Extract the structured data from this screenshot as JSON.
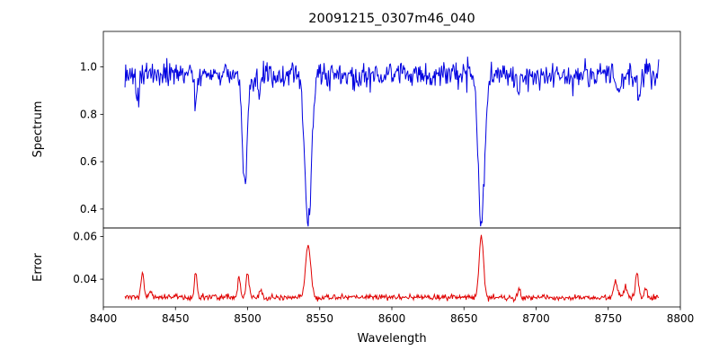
{
  "chart_data": {
    "type": "line",
    "title": "20091215_0307m46_040",
    "xlabel": "Wavelength",
    "grid": false,
    "legend": "none",
    "xlim": [
      8400,
      8800
    ],
    "x_ticks": {
      "values": [
        8400,
        8450,
        8500,
        8550,
        8600,
        8650,
        8700,
        8750,
        8800
      ],
      "labels": [
        "8400",
        "8450",
        "8500",
        "8550",
        "8600",
        "8650",
        "8700",
        "8750",
        "8800"
      ]
    },
    "x_data_range": [
      8415,
      8785
    ],
    "sample_step": 0.5,
    "noise_seed": 20091215,
    "panels": [
      {
        "series_name": "spectrum-line",
        "ylabel": "Spectrum",
        "ylim": [
          0.32,
          1.15
        ],
        "y_ticks": {
          "values": [
            0.4,
            0.6,
            0.8,
            1.0
          ],
          "labels": [
            "0.4",
            "0.6",
            "0.8",
            "1.0"
          ]
        },
        "line_color": "#0000e0",
        "baseline": 0.965,
        "noise_sigma": 0.028,
        "features": [
          {
            "center": 8424,
            "amplitude": -0.1,
            "width": 0.9
          },
          {
            "center": 8464,
            "amplitude": -0.12,
            "width": 0.8
          },
          {
            "center": 8498,
            "amplitude": -0.48,
            "width": 1.6
          },
          {
            "center": 8508,
            "amplitude": -0.07,
            "width": 0.8
          },
          {
            "center": 8542,
            "amplitude": -0.62,
            "width": 2.4
          },
          {
            "center": 8662,
            "amplitude": -0.63,
            "width": 2.2
          },
          {
            "center": 8688,
            "amplitude": -0.09,
            "width": 0.9
          },
          {
            "center": 8757,
            "amplitude": -0.08,
            "width": 1.1
          },
          {
            "center": 8771,
            "amplitude": -0.09,
            "width": 0.9
          }
        ]
      },
      {
        "series_name": "error-line",
        "ylabel": "Error",
        "ylim": [
          0.027,
          0.064
        ],
        "y_ticks": {
          "values": [
            0.04,
            0.06
          ],
          "labels": [
            "0.04",
            "0.06"
          ]
        },
        "line_color": "#e00000",
        "baseline": 0.0315,
        "noise_sigma": 0.0007,
        "features": [
          {
            "center": 8427,
            "amplitude": 0.0115,
            "width": 1.0
          },
          {
            "center": 8433,
            "amplitude": 0.003,
            "width": 0.8
          },
          {
            "center": 8464,
            "amplitude": 0.013,
            "width": 0.8
          },
          {
            "center": 8494,
            "amplitude": 0.009,
            "width": 0.9
          },
          {
            "center": 8500,
            "amplitude": 0.012,
            "width": 1.0
          },
          {
            "center": 8509,
            "amplitude": 0.004,
            "width": 0.8
          },
          {
            "center": 8542,
            "amplitude": 0.0245,
            "width": 1.8
          },
          {
            "center": 8662,
            "amplitude": 0.0285,
            "width": 1.5
          },
          {
            "center": 8688,
            "amplitude": 0.004,
            "width": 1.0
          },
          {
            "center": 8755,
            "amplitude": 0.007,
            "width": 1.5
          },
          {
            "center": 8762,
            "amplitude": 0.005,
            "width": 1.2
          },
          {
            "center": 8770,
            "amplitude": 0.011,
            "width": 1.1
          },
          {
            "center": 8776,
            "amplitude": 0.005,
            "width": 0.9
          }
        ]
      }
    ]
  }
}
